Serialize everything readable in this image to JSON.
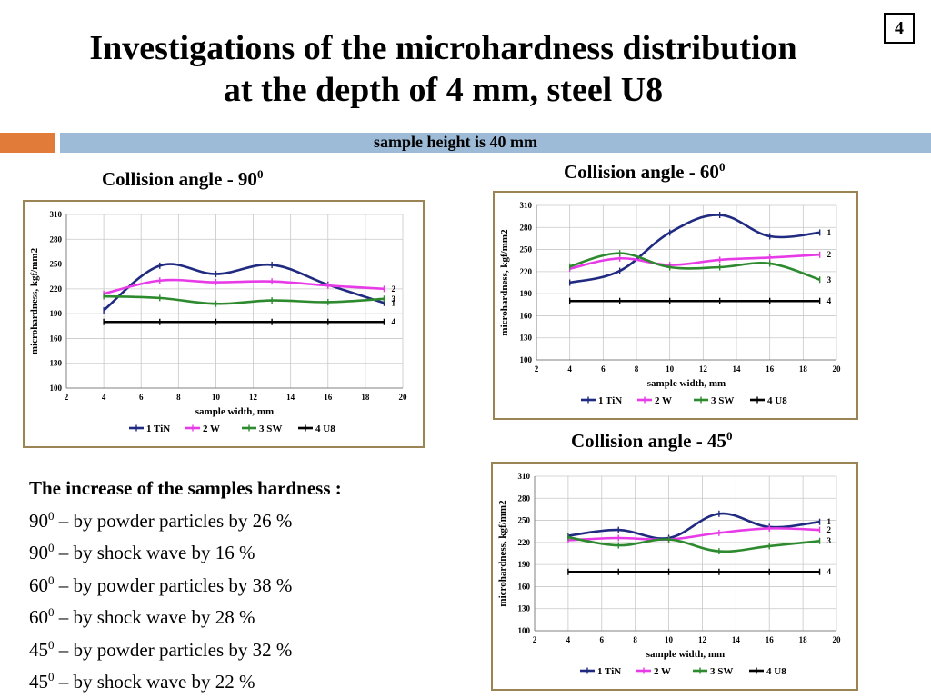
{
  "page": {
    "title_line1": "Investigations of the microhardness distribution",
    "title_line2": "at the depth of 4 mm, steel U8",
    "page_number": "4",
    "subtitle": "sample height is 40 mm",
    "accent_orange": "#e07b39",
    "accent_blue": "#9dbad6"
  },
  "chart_titles": [
    {
      "text": "Collision angle - 90",
      "sup": "0"
    },
    {
      "text": "Collision angle - 60",
      "sup": "0"
    },
    {
      "text": "Collision angle - 45",
      "sup": "0"
    }
  ],
  "notes": {
    "heading": "The increase of the samples hardness :",
    "items": [
      {
        "angle": "90",
        "sup": "0",
        "text": " – by powder particles by 26 %"
      },
      {
        "angle": "90",
        "sup": "0",
        "text": " – by shock wave by 16 %"
      },
      {
        "angle": "60",
        "sup": "0",
        "text": " – by powder particles by 38 %"
      },
      {
        "angle": "60",
        "sup": "0",
        "text": " – by shock wave by 28 %"
      },
      {
        "angle": "45",
        "sup": "0",
        "text": " – by powder particles by 32 %"
      },
      {
        "angle": "45",
        "sup": "0",
        "text": " – by shock wave by 22 %"
      }
    ]
  },
  "chart_data": [
    {
      "type": "line",
      "title": "Collision angle - 90⁰",
      "xlabel": "sample width, mm",
      "ylabel": "microhardness, kgf/mm2",
      "xlim": [
        2,
        20
      ],
      "ylim": [
        100,
        310
      ],
      "xticks": [
        "2",
        "4",
        "6",
        "8",
        "10",
        "12",
        "14",
        "16",
        "18",
        "20"
      ],
      "yticks": [
        "100",
        "130",
        "160",
        "190",
        "220",
        "250",
        "280",
        "310"
      ],
      "x": [
        4,
        7,
        10,
        13,
        16,
        19
      ],
      "grid": true,
      "legend_position": "bottom",
      "series": [
        {
          "name": "1 TiN",
          "color": "#1f2a80",
          "values": [
            194,
            248,
            238,
            249,
            225,
            203
          ],
          "end_label": "1"
        },
        {
          "name": "2 W",
          "color": "#e83be8",
          "values": [
            214,
            230,
            228,
            229,
            224,
            220
          ],
          "end_label": "2"
        },
        {
          "name": "3 SW",
          "color": "#2e8a2e",
          "values": [
            211,
            209,
            202,
            206,
            204,
            208
          ],
          "end_label": "3"
        },
        {
          "name": "4 U8",
          "color": "#000000",
          "values": [
            180,
            180,
            180,
            180,
            180,
            180
          ],
          "end_label": "4"
        }
      ]
    },
    {
      "type": "line",
      "title": "Collision angle - 60⁰",
      "xlabel": "sample width, mm",
      "ylabel": "microhardness, kgf/mm2",
      "xlim": [
        2,
        20
      ],
      "ylim": [
        100,
        310
      ],
      "xticks": [
        "2",
        "4",
        "6",
        "8",
        "10",
        "12",
        "14",
        "16",
        "18",
        "20"
      ],
      "yticks": [
        "100",
        "130",
        "160",
        "190",
        "220",
        "250",
        "280",
        "310"
      ],
      "x": [
        4,
        7,
        10,
        13,
        16,
        19
      ],
      "grid": true,
      "legend_position": "bottom",
      "series": [
        {
          "name": "1 TiN",
          "color": "#1f2a80",
          "values": [
            205,
            221,
            273,
            297,
            268,
            273
          ],
          "end_label": "1"
        },
        {
          "name": "2 W",
          "color": "#e83be8",
          "values": [
            224,
            238,
            229,
            236,
            239,
            243
          ],
          "end_label": "2"
        },
        {
          "name": "3 SW",
          "color": "#2e8a2e",
          "values": [
            227,
            245,
            226,
            226,
            231,
            209
          ],
          "end_label": "3"
        },
        {
          "name": "4 U8",
          "color": "#000000",
          "values": [
            180,
            180,
            180,
            180,
            180,
            180
          ],
          "end_label": "4"
        }
      ]
    },
    {
      "type": "line",
      "title": "Collision angle - 45⁰",
      "xlabel": "sample width, mm",
      "ylabel": "microhardness, kgf/mm2",
      "xlim": [
        2,
        20
      ],
      "ylim": [
        100,
        310
      ],
      "xticks": [
        "2",
        "4",
        "6",
        "8",
        "10",
        "12",
        "14",
        "16",
        "18",
        "20"
      ],
      "yticks": [
        "100",
        "130",
        "160",
        "190",
        "220",
        "250",
        "280",
        "310"
      ],
      "x": [
        4,
        7,
        10,
        13,
        16,
        19
      ],
      "grid": true,
      "legend_position": "bottom",
      "series": [
        {
          "name": "1 TiN",
          "color": "#1f2a80",
          "values": [
            229,
            237,
            226,
            259,
            241,
            248
          ],
          "end_label": "1"
        },
        {
          "name": "2 W",
          "color": "#e83be8",
          "values": [
            223,
            226,
            224,
            233,
            239,
            237
          ],
          "end_label": "2"
        },
        {
          "name": "3 SW",
          "color": "#2e8a2e",
          "values": [
            227,
            216,
            224,
            208,
            215,
            222
          ],
          "end_label": "3"
        },
        {
          "name": "4 U8",
          "color": "#000000",
          "values": [
            180,
            180,
            180,
            180,
            180,
            180
          ],
          "end_label": "4"
        }
      ]
    }
  ]
}
